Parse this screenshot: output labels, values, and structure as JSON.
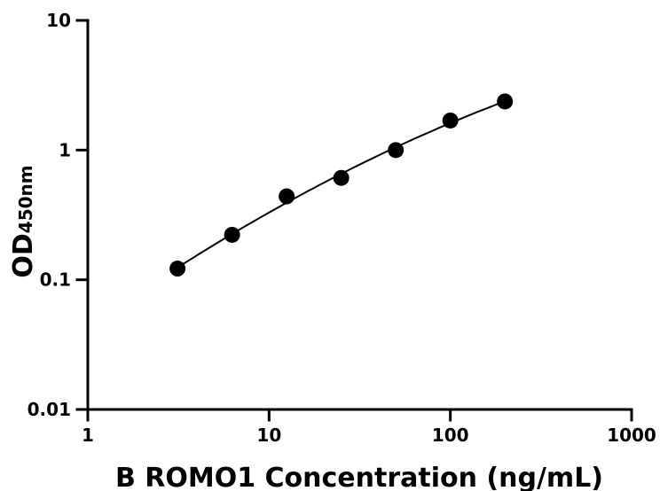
{
  "chart_data": {
    "type": "scatter",
    "title": "",
    "xlabel": "B ROMO1 Concentration (ng/mL)",
    "ylabel": {
      "main": "OD",
      "subscript": "450nm"
    },
    "x_scale": "log",
    "y_scale": "log",
    "xlim": [
      1,
      1000
    ],
    "ylim": [
      0.01,
      10
    ],
    "x_ticks": [
      1,
      10,
      100,
      1000
    ],
    "x_tick_labels": [
      "1",
      "10",
      "100",
      "1000"
    ],
    "y_ticks": [
      0.01,
      0.1,
      1,
      10
    ],
    "y_tick_labels": [
      "0.01",
      "0.1",
      "1",
      "10"
    ],
    "grid": false,
    "legend": "none",
    "series": [
      {
        "x": [
          3.125,
          6.25,
          12.5,
          25,
          50,
          100,
          200
        ],
        "y": [
          0.122,
          0.222,
          0.44,
          0.61,
          1.0,
          1.69,
          2.37
        ],
        "marker": "filled-circle",
        "color": "#000000",
        "fit_line": true
      }
    ]
  }
}
